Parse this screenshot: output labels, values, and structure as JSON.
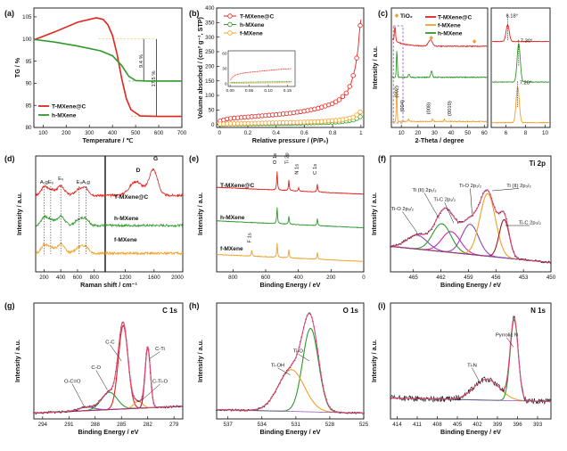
{
  "colors": {
    "red": "#e3231c",
    "green": "#2f9a2c",
    "orange": "#f0a02a",
    "black": "#111111",
    "magenta": "#c42ea8",
    "purple": "#8a48b8",
    "dark_red": "#a81820",
    "envelope": "#e0487a",
    "data_points": "#111111"
  },
  "panels": [
    {
      "id": "a",
      "letter": "(a)",
      "type": "line",
      "xlabel": "Temperature / ℃",
      "ylabel": "TG / %",
      "xlim": [
        60,
        700
      ],
      "ylim": [
        80,
        107
      ],
      "xticks": [
        100,
        200,
        300,
        400,
        500,
        600,
        700
      ],
      "yticks": [
        80,
        85,
        90,
        95,
        100,
        105
      ],
      "legend_position": "bottom-left",
      "series": [
        {
          "name": "T-MXene@C",
          "color": "red",
          "x": [
            60,
            150,
            250,
            330,
            360,
            380,
            400,
            420,
            440,
            460,
            480,
            520,
            600,
            700
          ],
          "y": [
            99.8,
            101.6,
            103.8,
            104.8,
            104.4,
            103.2,
            100.8,
            96.5,
            91,
            86.5,
            84,
            82.6,
            82.5,
            82.5
          ]
        },
        {
          "name": "h-MXene",
          "color": "green",
          "x": [
            60,
            150,
            250,
            350,
            400,
            440,
            470,
            500,
            550,
            700
          ],
          "y": [
            99.9,
            99.3,
            98.4,
            97.3,
            96.2,
            94,
            91.6,
            90.6,
            90.5,
            90.5
          ]
        }
      ],
      "annotations": [
        {
          "text": "9.4 %"
        },
        {
          "text": "17.5 %"
        }
      ]
    },
    {
      "id": "b",
      "letter": "(b)",
      "type": "line",
      "xlabel": "Relative pressure / (P/P₀)",
      "ylabel": "Volume absorbed / (cm³ g⁻¹, STP)",
      "xlim": [
        -0.02,
        1.02
      ],
      "ylim": [
        -10,
        400
      ],
      "xticks": [
        0.0,
        0.2,
        0.4,
        0.6,
        0.8,
        1.0
      ],
      "yticks": [
        0,
        50,
        100,
        150,
        200,
        250,
        300,
        350,
        400
      ],
      "legend_position": "top-left",
      "series": [
        {
          "name": "T-MXene@C",
          "color": "red",
          "x": [
            0.005,
            0.05,
            0.1,
            0.2,
            0.3,
            0.4,
            0.5,
            0.6,
            0.7,
            0.8,
            0.85,
            0.9,
            0.93,
            0.96,
            0.98,
            0.99,
            1.0
          ],
          "y": [
            12,
            19,
            22,
            26,
            30,
            34,
            39,
            46,
            56,
            72,
            86,
            110,
            140,
            195,
            260,
            320,
            360
          ]
        },
        {
          "name": "h-MXene",
          "color": "green",
          "x": [
            0.005,
            0.1,
            0.3,
            0.5,
            0.7,
            0.85,
            0.95,
            1.0
          ],
          "y": [
            1,
            2,
            3,
            4,
            6,
            9,
            16,
            28
          ]
        },
        {
          "name": "f-MXene",
          "color": "orange",
          "x": [
            0.005,
            0.1,
            0.3,
            0.5,
            0.7,
            0.85,
            0.95,
            1.0
          ],
          "y": [
            2,
            3,
            5,
            7,
            10,
            15,
            25,
            45
          ]
        }
      ],
      "inset": {
        "xticks": [
          0.0,
          0.05,
          0.1,
          0.15
        ],
        "yticks": [
          0,
          30,
          60
        ],
        "xlim": [
          -0.005,
          0.17
        ],
        "ylim": [
          -5,
          65
        ],
        "series": [
          {
            "color": "red",
            "x": [
              0.001,
              0.01,
              0.02,
              0.04,
              0.08,
              0.12,
              0.16
            ],
            "y": [
              8,
              16,
              19,
              22,
              25,
              28,
              30
            ]
          },
          {
            "color": "green",
            "x": [
              0.001,
              0.05,
              0.1,
              0.16
            ],
            "y": [
              3,
              3.5,
              4,
              4.5
            ]
          },
          {
            "color": "orange",
            "x": [
              0.001,
              0.05,
              0.1,
              0.16
            ],
            "y": [
              1,
              1.5,
              2,
              2.5
            ]
          }
        ]
      }
    },
    {
      "id": "c",
      "letter": "(c)",
      "type": "line",
      "xlabel": "2-Theta / degree",
      "ylabel": "Intensity / a.u.",
      "xlim": [
        4,
        62
      ],
      "xticks": [
        10,
        20,
        30,
        40,
        50,
        60
      ],
      "legend_position": "top-right",
      "legend_tio2": "TiO₂",
      "series": [
        {
          "name": "T-MXene@C",
          "color": "red"
        },
        {
          "name": "f-MXene",
          "color": "orange"
        },
        {
          "name": "h-MXene",
          "color": "green"
        }
      ],
      "annotations": [
        {
          "text": "(002)"
        },
        {
          "text": "(004)"
        },
        {
          "text": "(008)"
        },
        {
          "text": "(0010)"
        }
      ],
      "inset_labels": [
        "6.18°",
        "7.30°",
        "7.20°"
      ]
    },
    {
      "id": "d",
      "letter": "(d)",
      "type": "line",
      "xlabel": "Raman shift / cm⁻¹",
      "ylabel": "Intensity / a.u.",
      "xticks": [
        200,
        400,
        600,
        800,
        1200,
        1600,
        2000
      ],
      "mode_labels": [
        "A₁g",
        "E₉",
        "E₉",
        "E₉",
        "A₁g"
      ],
      "band_labels": [
        "D",
        "G"
      ],
      "series": [
        {
          "name": "T-MXene@C",
          "color": "red"
        },
        {
          "name": "h-MXene",
          "color": "green"
        },
        {
          "name": "f-MXene",
          "color": "orange"
        }
      ]
    },
    {
      "id": "e",
      "letter": "(e)",
      "type": "line",
      "xlabel": "Binding Energy / eV",
      "ylabel": "Intensity / a.u.",
      "xlim": [
        900,
        0
      ],
      "xticks": [
        800,
        600,
        400,
        200,
        0
      ],
      "peak_labels": [
        "O 1s",
        "Ti 2p",
        "N 1s",
        "C 1s",
        "F 1s"
      ],
      "series": [
        {
          "name": "T-MXene@C",
          "color": "red"
        },
        {
          "name": "h-MXene",
          "color": "green"
        },
        {
          "name": "f-MXene",
          "color": "orange"
        }
      ]
    },
    {
      "id": "f",
      "letter": "(f)",
      "type": "line",
      "title": "Ti 2p",
      "xlabel": "Binding Energy / eV",
      "ylabel": "Intensity / a.u.",
      "xlim": [
        467.5,
        450
      ],
      "xticks": [
        465,
        462,
        459,
        456,
        453,
        450
      ],
      "component_labels": [
        "Ti (II) 2p₁/₂",
        "Ti-O 2p₃/₂",
        "Ti-O 2p₁/₂",
        "Ti-C 2p₁/₂",
        "Ti (II) 2p₃/₂",
        "Ti-C 2p₃/₂"
      ]
    },
    {
      "id": "g",
      "letter": "(g)",
      "type": "line",
      "title": "C 1s",
      "xlabel": "Binding Energy / eV",
      "ylabel": "Intensity / a.u.",
      "xlim": [
        295,
        278
      ],
      "xticks": [
        294,
        291,
        288,
        285,
        282,
        279
      ],
      "component_labels": [
        "C-C",
        "C-O",
        "O-C=O",
        "C-Ti",
        "C-Ti-O"
      ]
    },
    {
      "id": "h",
      "letter": "(h)",
      "type": "line",
      "title": "O 1s",
      "xlabel": "Binding Energy / eV",
      "ylabel": "Intensity / a.u.",
      "xlim": [
        538,
        525
      ],
      "xticks": [
        537,
        534,
        531,
        528,
        525
      ],
      "component_labels": [
        "Ti-O",
        "Ti-OH"
      ]
    },
    {
      "id": "i",
      "letter": "(i)",
      "type": "line",
      "title": "N 1s",
      "xlabel": "Binding Energy / eV",
      "ylabel": "Intensity / a.u.",
      "xlim": [
        415,
        391
      ],
      "xticks": [
        414,
        411,
        408,
        405,
        402,
        399,
        396,
        393
      ],
      "component_labels": [
        "Ti-N",
        "Pyrrolic N"
      ]
    }
  ]
}
